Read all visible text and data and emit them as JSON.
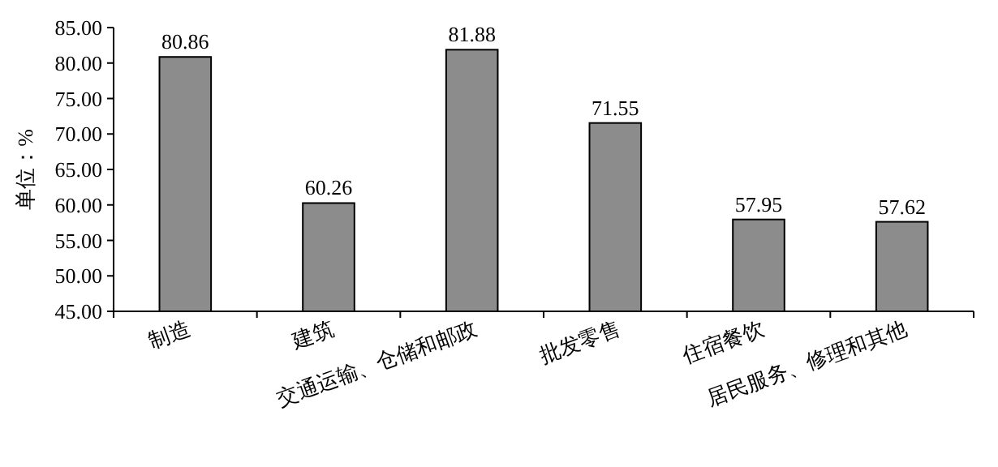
{
  "chart_data": {
    "type": "bar",
    "ylabel": "单位：%",
    "categories": [
      "制造",
      "建筑",
      "交通运输、仓储和邮政",
      "批发零售",
      "住宿餐饮",
      "居民服务、修理和其他"
    ],
    "values": [
      80.86,
      60.26,
      81.88,
      71.55,
      57.95,
      57.62
    ],
    "color": "#8c8c8c",
    "ylim": [
      45,
      85
    ],
    "yticks": [
      {
        "value": 45,
        "label": "45.00"
      },
      {
        "value": 50,
        "label": "50.00"
      },
      {
        "value": 55,
        "label": "55.00"
      },
      {
        "value": 60,
        "label": "60.00"
      },
      {
        "value": 65,
        "label": "65.00"
      },
      {
        "value": 70,
        "label": "70.00"
      },
      {
        "value": 75,
        "label": "75.00"
      },
      {
        "value": 80,
        "label": "80.00"
      },
      {
        "value": 85,
        "label": "85.00"
      }
    ],
    "data_labels": true,
    "grid": false
  }
}
